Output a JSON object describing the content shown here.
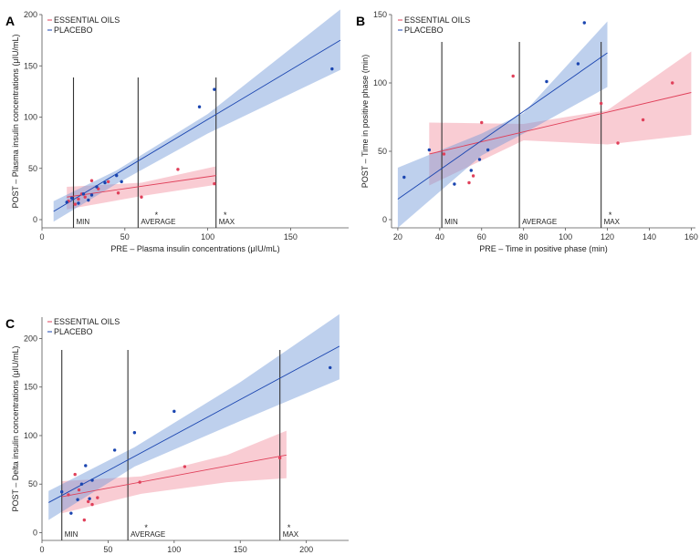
{
  "chart_data": [
    {
      "panel": "A",
      "type": "scatter",
      "xlabel": "PRE – Plasma insulin concentrations (μIU/mL)",
      "ylabel": "POST – Plasma insulin concentrations (μIU/mL)",
      "xlim": [
        0,
        185
      ],
      "ylim": [
        -8,
        200
      ],
      "xticks": [
        0,
        50,
        100,
        150
      ],
      "yticks": [
        0,
        50,
        100,
        150,
        200
      ],
      "legend": [
        "ESSENTIAL OILS",
        "PLACEBO"
      ],
      "reference_lines": [
        {
          "label": "MIN",
          "x": 19,
          "star": false
        },
        {
          "label": "AVERAGE",
          "x": 58,
          "star": true
        },
        {
          "label": "MAX",
          "x": 105,
          "star": true
        }
      ],
      "series": [
        {
          "name": "ESSENTIAL OILS",
          "color": "#e0405a",
          "points": [
            [
              16,
              18
            ],
            [
              20,
              15
            ],
            [
              22,
              20
            ],
            [
              24,
              25
            ],
            [
              26,
              22
            ],
            [
              30,
              38
            ],
            [
              34,
              30
            ],
            [
              40,
              37
            ],
            [
              46,
              26
            ],
            [
              60,
              22
            ],
            [
              82,
              49
            ],
            [
              104,
              35
            ]
          ],
          "fit": {
            "x0": 15,
            "y0": 22,
            "x1": 105,
            "y1": 43
          },
          "band": [
            [
              15,
              32
            ],
            [
              60,
              36
            ],
            [
              105,
              52
            ],
            [
              105,
              34
            ],
            [
              60,
              23
            ],
            [
              15,
              10
            ]
          ]
        },
        {
          "name": "PLACEBO",
          "color": "#1a45b0",
          "points": [
            [
              15,
              17
            ],
            [
              18,
              21
            ],
            [
              22,
              16
            ],
            [
              25,
              25
            ],
            [
              28,
              19
            ],
            [
              30,
              24
            ],
            [
              33,
              32
            ],
            [
              38,
              36
            ],
            [
              45,
              43
            ],
            [
              48,
              37
            ],
            [
              95,
              110
            ],
            [
              104,
              127
            ],
            [
              175,
              147
            ]
          ],
          "fit": {
            "x0": 7,
            "y0": 8,
            "x1": 180,
            "y1": 175
          },
          "band": [
            [
              7,
              18
            ],
            [
              45,
              48
            ],
            [
              100,
              103
            ],
            [
              180,
              205
            ],
            [
              180,
              146
            ],
            [
              100,
              84
            ],
            [
              45,
              35
            ],
            [
              7,
              -2
            ]
          ]
        }
      ]
    },
    {
      "panel": "B",
      "type": "scatter",
      "xlabel": "PRE – Time in positive phase (min)",
      "ylabel": "POST – Time in positive phase (min)",
      "xlim": [
        17,
        162
      ],
      "ylim": [
        -6,
        150
      ],
      "xticks": [
        20,
        40,
        60,
        80,
        100,
        120,
        140,
        160
      ],
      "yticks": [
        0,
        50,
        100,
        150
      ],
      "legend": [
        "ESSENTIAL OILS",
        "PLACEBO"
      ],
      "reference_lines": [
        {
          "label": "MIN",
          "x": 41,
          "star": false
        },
        {
          "label": "AVERAGE",
          "x": 78,
          "star": false
        },
        {
          "label": "MAX",
          "x": 117,
          "star": true
        }
      ],
      "series": [
        {
          "name": "ESSENTIAL OILS",
          "color": "#e0405a",
          "points": [
            [
              42,
              48
            ],
            [
              54,
              27
            ],
            [
              56,
              32
            ],
            [
              60,
              71
            ],
            [
              75,
              105
            ],
            [
              117,
              85
            ],
            [
              125,
              56
            ],
            [
              137,
              73
            ],
            [
              151,
              100
            ]
          ],
          "fit": {
            "x0": 35,
            "y0": 48,
            "x1": 160,
            "y1": 93
          },
          "band": [
            [
              35,
              71
            ],
            [
              80,
              70
            ],
            [
              120,
              80
            ],
            [
              160,
              123
            ],
            [
              160,
              62
            ],
            [
              120,
              55
            ],
            [
              80,
              58
            ],
            [
              35,
              25
            ]
          ]
        },
        {
          "name": "PLACEBO",
          "color": "#1a45b0",
          "points": [
            [
              23,
              31
            ],
            [
              35,
              51
            ],
            [
              47,
              26
            ],
            [
              55,
              36
            ],
            [
              59,
              44
            ],
            [
              63,
              51
            ],
            [
              91,
              101
            ],
            [
              106,
              114
            ],
            [
              109,
              144
            ]
          ],
          "fit": {
            "x0": 20,
            "y0": 15,
            "x1": 120,
            "y1": 122
          },
          "band": [
            [
              20,
              38
            ],
            [
              60,
              63
            ],
            [
              80,
              78
            ],
            [
              120,
              145
            ],
            [
              120,
              97
            ],
            [
              80,
              63
            ],
            [
              60,
              47
            ],
            [
              20,
              -6
            ]
          ]
        }
      ]
    },
    {
      "panel": "C",
      "type": "scatter",
      "xlabel": "PRE – Delta insulin concentrations (μIU/mL)",
      "ylabel": "POST – Delta insulin concentrations (μIU/mL)",
      "xlim": [
        0,
        232
      ],
      "ylim": [
        -8,
        222
      ],
      "xticks": [
        0,
        50,
        100,
        150,
        200
      ],
      "yticks": [
        0,
        50,
        100,
        150,
        200
      ],
      "legend": [
        "ESSENTIAL OILS",
        "PLACEBO"
      ],
      "reference_lines": [
        {
          "label": "MIN",
          "x": 15,
          "star": false
        },
        {
          "label": "AVERAGE",
          "x": 65,
          "star": true
        },
        {
          "label": "MAX",
          "x": 180,
          "star": true
        }
      ],
      "series": [
        {
          "name": "ESSENTIAL OILS",
          "color": "#e0405a",
          "points": [
            [
              20,
              39
            ],
            [
              25,
              60
            ],
            [
              28,
              44
            ],
            [
              32,
              13
            ],
            [
              35,
              32
            ],
            [
              38,
              29
            ],
            [
              42,
              36
            ],
            [
              74,
              52
            ],
            [
              108,
              68
            ],
            [
              180,
              77
            ]
          ],
          "fit": {
            "x0": 15,
            "y0": 37,
            "x1": 185,
            "y1": 80
          },
          "band": [
            [
              15,
              53
            ],
            [
              75,
              58
            ],
            [
              140,
              80
            ],
            [
              185,
              105
            ],
            [
              185,
              56
            ],
            [
              140,
              52
            ],
            [
              75,
              40
            ],
            [
              15,
              20
            ]
          ]
        },
        {
          "name": "PLACEBO",
          "color": "#1a45b0",
          "points": [
            [
              15,
              42
            ],
            [
              22,
              20
            ],
            [
              27,
              34
            ],
            [
              30,
              50
            ],
            [
              33,
              69
            ],
            [
              36,
              35
            ],
            [
              38,
              54
            ],
            [
              55,
              85
            ],
            [
              70,
              103
            ],
            [
              100,
              125
            ],
            [
              218,
              170
            ]
          ],
          "fit": {
            "x0": 5,
            "y0": 31,
            "x1": 225,
            "y1": 192
          },
          "band": [
            [
              5,
              43
            ],
            [
              70,
              88
            ],
            [
              150,
              155
            ],
            [
              225,
              225
            ],
            [
              225,
              158
            ],
            [
              150,
              115
            ],
            [
              70,
              68
            ],
            [
              5,
              13
            ]
          ]
        }
      ]
    }
  ]
}
